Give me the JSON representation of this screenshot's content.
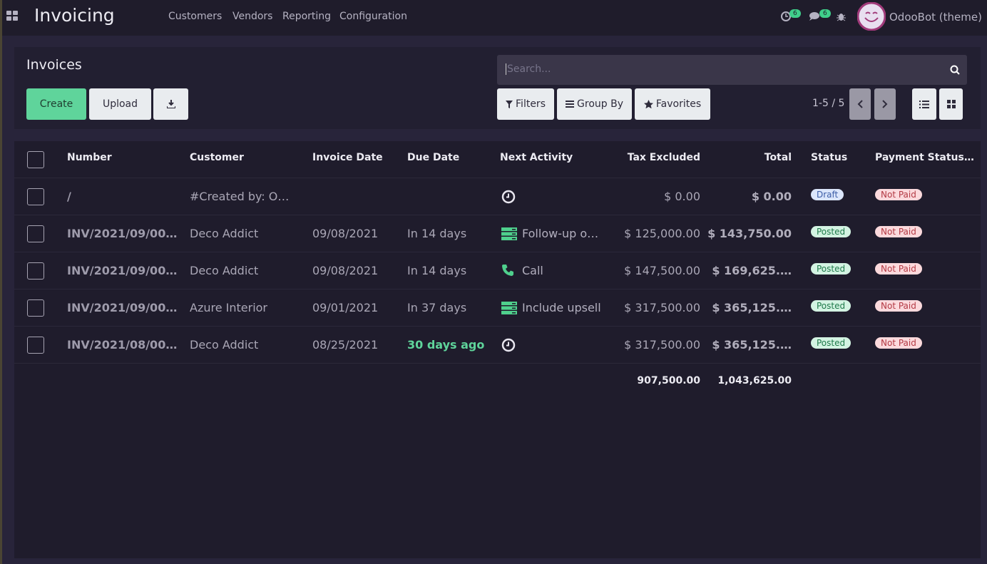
{
  "navbar": {
    "app": "Invoicing",
    "menu": [
      "Customers",
      "Vendors",
      "Reporting",
      "Configuration"
    ],
    "activity_count": 6,
    "message_count": 6,
    "user": "OdooBot (theme)"
  },
  "control_panel": {
    "title": "Invoices",
    "buttons": [
      "Create",
      "Upload"
    ],
    "search_placeholder": "Search...",
    "filters": [
      "Filters",
      "Group By",
      "Favorites"
    ],
    "pager": "1-5 / 5"
  },
  "table": {
    "columns": [
      "Number",
      "Customer",
      "Invoice Date",
      "Due Date",
      "Next Activity",
      "Tax Excluded",
      "Total",
      "Status",
      "Payment Status…"
    ],
    "rows": [
      {
        "number": "/",
        "customer": "#Created by: O…",
        "invoice_date": null,
        "due_date": null,
        "activity_icon": "clock",
        "activity": null,
        "tax_excluded": "$ 0.00",
        "total": "$ 0.00",
        "status": "Draft",
        "status_tone": "info",
        "payment_status": "Not Paid"
      },
      {
        "number": "INV/2021/09/00…",
        "customer": "Deco Addict",
        "invoice_date": "09/08/2021",
        "due_date": "In 14 days",
        "activity_icon": "list",
        "activity": "Follow-up o…",
        "tax_excluded": "$ 125,000.00",
        "total": "$ 143,750.00",
        "status": "Posted",
        "status_tone": "success",
        "payment_status": "Not Paid"
      },
      {
        "number": "INV/2021/09/00…",
        "customer": "Deco Addict",
        "invoice_date": "09/08/2021",
        "due_date": "In 14 days",
        "activity_icon": "phone",
        "activity": "Call",
        "tax_excluded": "$ 147,500.00",
        "total": "$ 169,625.…",
        "status": "Posted",
        "status_tone": "success",
        "payment_status": "Not Paid"
      },
      {
        "number": "INV/2021/09/00…",
        "customer": "Azure Interior",
        "invoice_date": "09/01/2021",
        "due_date": "In 37 days",
        "activity_icon": "list",
        "activity": "Include upsell",
        "tax_excluded": "$ 317,500.00",
        "total": "$ 365,125.…",
        "status": "Posted",
        "status_tone": "success",
        "payment_status": "Not Paid"
      },
      {
        "number": "INV/2021/08/00…",
        "customer": "Deco Addict",
        "invoice_date": "08/25/2021",
        "due_date": "30 days ago",
        "due_late": true,
        "activity_icon": "clock",
        "activity": null,
        "tax_excluded": "$ 317,500.00",
        "total": "$ 365,125.…",
        "status": "Posted",
        "status_tone": "success",
        "payment_status": "Not Paid"
      }
    ],
    "totals": {
      "tax_excluded": "907,500.00",
      "total": "1,043,625.00"
    }
  }
}
